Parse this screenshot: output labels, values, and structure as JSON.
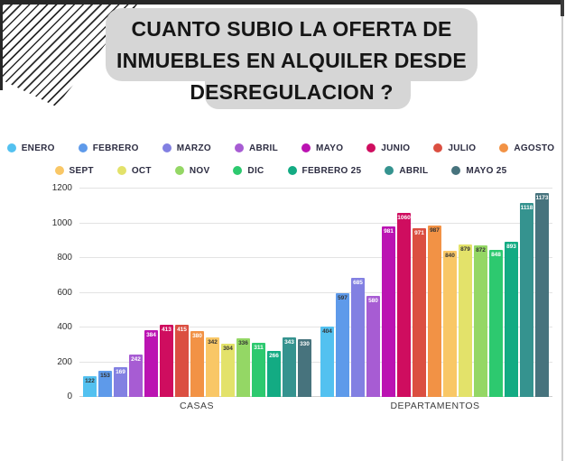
{
  "header": {
    "line1": "CUANTO SUBIO LA OFERTA DE",
    "line2": "INMUEBLES EN ALQUILER DESDE",
    "line3": "DESREGULACION ?"
  },
  "chart_data": {
    "type": "bar",
    "title": "CUANTO SUBIO LA OFERTA DE INMUEBLES EN ALQUILER DESDE DESREGULACION ?",
    "categories": [
      "CASAS",
      "DEPARTAMENTOS"
    ],
    "xlabel": "",
    "ylabel": "",
    "ylim": [
      0,
      1200
    ],
    "yticks": [
      0,
      200,
      400,
      600,
      800,
      1000,
      1200
    ],
    "grid": true,
    "legend_position": "top",
    "series": [
      {
        "name": "ENERO",
        "color": "#53C1F0",
        "values": [
          122,
          404
        ],
        "label_colors": [
          "dark",
          "dark"
        ]
      },
      {
        "name": "FEBRERO",
        "color": "#5E9AEA",
        "values": [
          153,
          597
        ],
        "label_colors": [
          "dark",
          "dark"
        ]
      },
      {
        "name": "MARZO",
        "color": "#8280E2",
        "values": [
          169,
          685
        ],
        "label_colors": [
          "light",
          "light"
        ]
      },
      {
        "name": "ABRIL",
        "color": "#A75CD3",
        "values": [
          242,
          580
        ],
        "label_colors": [
          "light",
          "light"
        ]
      },
      {
        "name": "MAYO",
        "color": "#BB13B2",
        "values": [
          384,
          981
        ],
        "label_colors": [
          "light",
          "light"
        ]
      },
      {
        "name": "JUNIO",
        "color": "#CF0D5F",
        "values": [
          413,
          1060
        ],
        "label_colors": [
          "light",
          "light"
        ]
      },
      {
        "name": "JULIO",
        "color": "#DB4F41",
        "values": [
          415,
          971
        ],
        "label_colors": [
          "light",
          "light"
        ]
      },
      {
        "name": "AGOSTO",
        "color": "#F29245",
        "values": [
          380,
          987
        ],
        "label_colors": [
          "light",
          "dark"
        ]
      },
      {
        "name": "SEPT",
        "color": "#F9C766",
        "values": [
          342,
          840
        ],
        "label_colors": [
          "dark",
          "dark"
        ]
      },
      {
        "name": "OCT",
        "color": "#E3E26A",
        "values": [
          304,
          879
        ],
        "label_colors": [
          "dark",
          "dark"
        ]
      },
      {
        "name": "NOV",
        "color": "#94D765",
        "values": [
          336,
          872
        ],
        "label_colors": [
          "dark",
          "dark"
        ]
      },
      {
        "name": "DIC",
        "color": "#2DC96F",
        "values": [
          311,
          848
        ],
        "label_colors": [
          "light",
          "light"
        ]
      },
      {
        "name": "FEBRERO 25",
        "color": "#13AB83",
        "values": [
          266,
          893
        ],
        "label_colors": [
          "light",
          "light"
        ]
      },
      {
        "name": "ABRIL",
        "color": "#35938F",
        "values": [
          343,
          1118
        ],
        "label_colors": [
          "light",
          "light"
        ]
      },
      {
        "name": "MAYO 25",
        "color": "#47737D",
        "values": [
          330,
          1173
        ],
        "label_colors": [
          "light",
          "light"
        ]
      }
    ]
  }
}
